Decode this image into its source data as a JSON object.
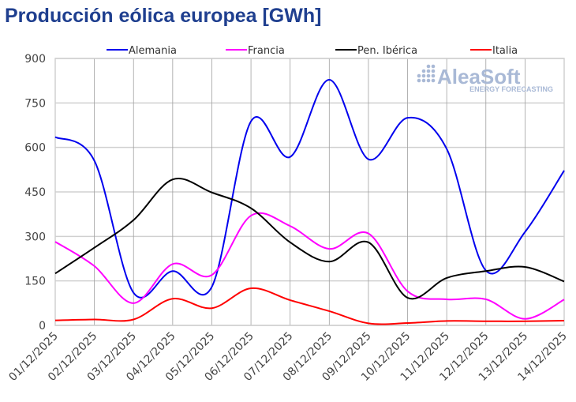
{
  "chart_data": {
    "type": "line",
    "title": "Producción eólica europea [GWh]",
    "xlabel": "",
    "ylabel": "",
    "categories": [
      "01/12/2025",
      "02/12/2025",
      "03/12/2025",
      "04/12/2025",
      "05/12/2025",
      "06/12/2025",
      "07/12/2025",
      "08/12/2025",
      "09/12/2025",
      "10/12/2025",
      "11/12/2025",
      "12/12/2025",
      "13/12/2025",
      "14/12/2025"
    ],
    "ylim": [
      0,
      900
    ],
    "yticks": [
      0,
      150,
      300,
      450,
      600,
      750,
      900
    ],
    "grid": true,
    "legend_position": "top",
    "smoothed": true,
    "series": [
      {
        "name": "Alemania",
        "color": "#0000ee",
        "values": [
          635,
          555,
          110,
          183,
          130,
          688,
          568,
          828,
          560,
          700,
          595,
          185,
          315,
          522
        ]
      },
      {
        "name": "Francia",
        "color": "#ff00ff",
        "values": [
          282,
          200,
          75,
          207,
          170,
          370,
          335,
          258,
          310,
          115,
          88,
          88,
          22,
          87
        ]
      },
      {
        "name": "Pen. Ibérica",
        "color": "#000000",
        "values": [
          175,
          262,
          355,
          492,
          448,
          395,
          280,
          215,
          280,
          93,
          160,
          183,
          197,
          148
        ]
      },
      {
        "name": "Italia",
        "color": "#ff0000",
        "values": [
          17,
          20,
          20,
          90,
          58,
          125,
          85,
          48,
          7,
          8,
          15,
          14,
          14,
          16
        ]
      }
    ]
  },
  "logo": {
    "name": "AleaSoft",
    "tagline": "ENERGY FORECASTING",
    "color": "#a9b9d6"
  }
}
